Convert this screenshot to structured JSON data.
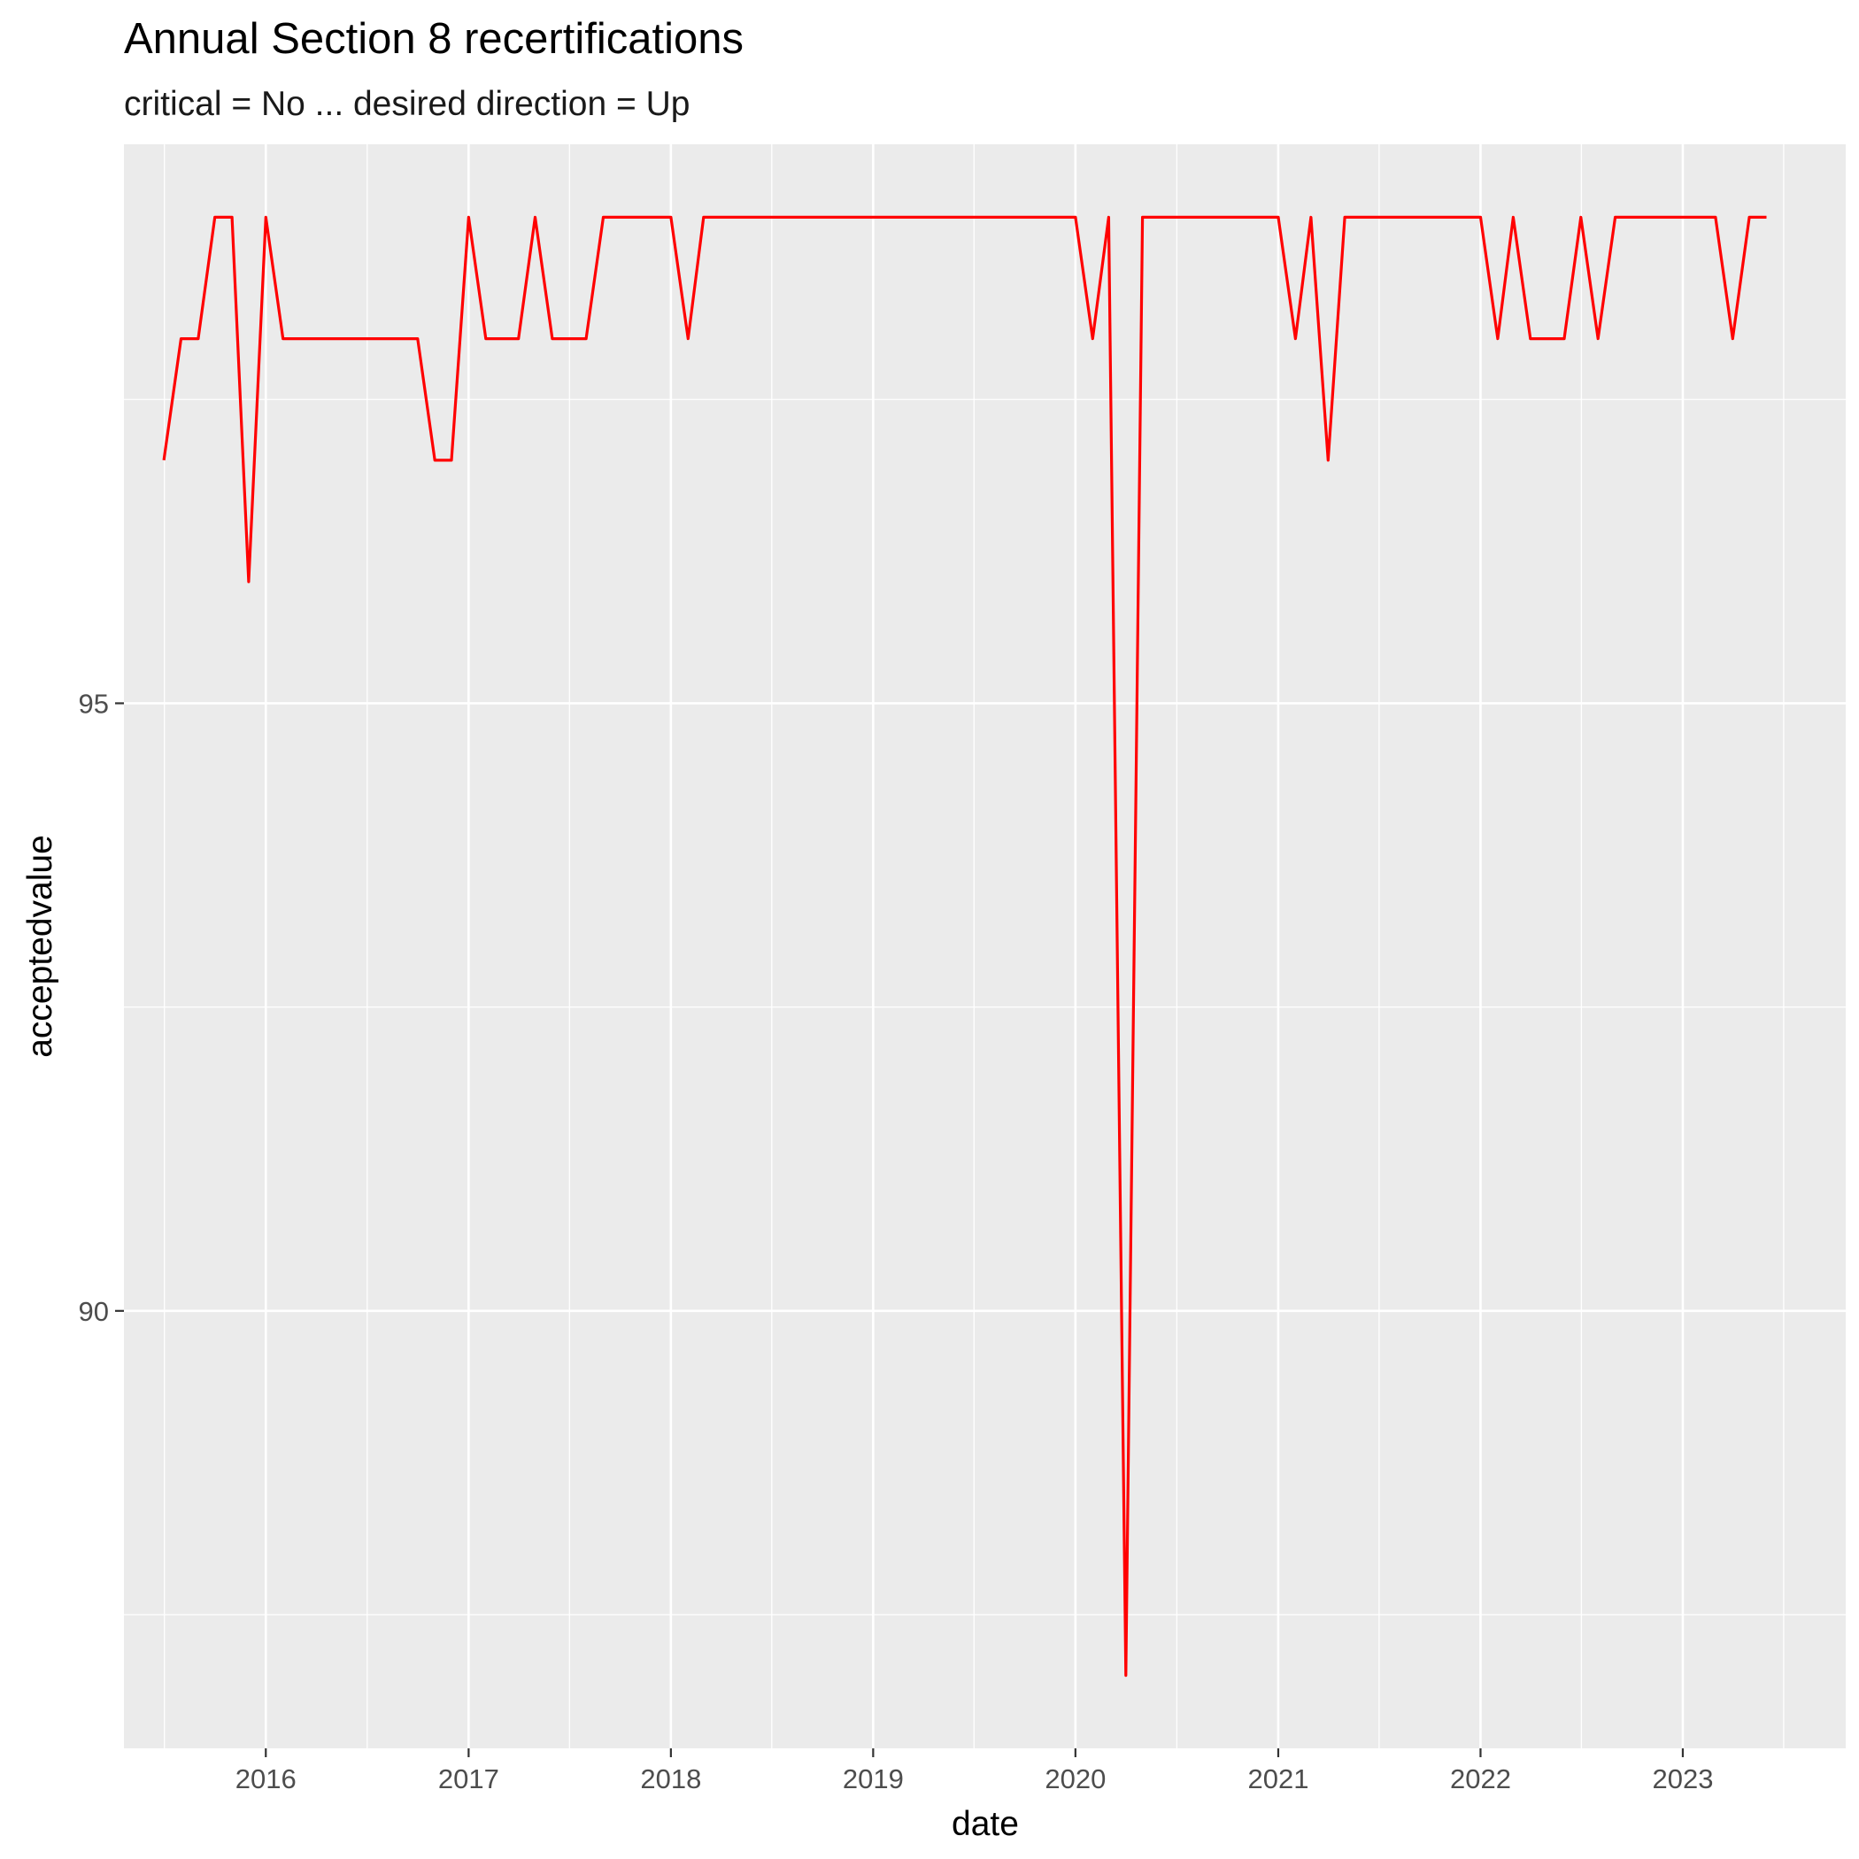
{
  "chart_data": {
    "type": "line",
    "title": "Annual Section 8 recertifications",
    "subtitle": "critical = No ... desired direction = Up",
    "xlabel": "date",
    "ylabel": "acceptedvalue",
    "xlim": [
      "2015-04-20",
      "2023-10-22"
    ],
    "ylim": [
      86.4,
      99.6
    ],
    "x_ticks": [
      "2016",
      "2017",
      "2018",
      "2019",
      "2020",
      "2021",
      "2022",
      "2023"
    ],
    "y_ticks": [
      90,
      95
    ],
    "grid": true,
    "legend": "none",
    "colors": {
      "line": "#ff0000",
      "panel": "#ebebeb",
      "grid": "#ffffff"
    },
    "series": [
      {
        "x": [
          "2015-07-01",
          "2015-08-01",
          "2015-09-01",
          "2015-10-01",
          "2015-11-01",
          "2015-12-01",
          "2016-01-01",
          "2016-02-01",
          "2016-03-01",
          "2016-04-01",
          "2016-05-01",
          "2016-06-01",
          "2016-07-01",
          "2016-08-01",
          "2016-09-01",
          "2016-10-01",
          "2016-11-01",
          "2016-12-01",
          "2017-01-01",
          "2017-02-01",
          "2017-03-01",
          "2017-04-01",
          "2017-05-01",
          "2017-06-01",
          "2017-07-01",
          "2017-08-01",
          "2017-09-01",
          "2017-10-01",
          "2017-11-01",
          "2017-12-01",
          "2018-01-01",
          "2018-02-01",
          "2018-03-01",
          "2018-04-01",
          "2018-05-01",
          "2018-06-01",
          "2018-07-01",
          "2018-08-01",
          "2018-09-01",
          "2018-10-01",
          "2018-11-01",
          "2018-12-01",
          "2019-01-01",
          "2019-02-01",
          "2019-03-01",
          "2019-04-01",
          "2019-05-01",
          "2019-06-01",
          "2019-07-01",
          "2019-08-01",
          "2019-09-01",
          "2019-10-01",
          "2019-11-01",
          "2019-12-01",
          "2020-01-01",
          "2020-02-01",
          "2020-03-01",
          "2020-04-01",
          "2020-05-01",
          "2020-06-01",
          "2020-07-01",
          "2020-08-01",
          "2020-09-01",
          "2020-10-01",
          "2020-11-01",
          "2020-12-01",
          "2021-01-01",
          "2021-02-01",
          "2021-03-01",
          "2021-04-01",
          "2021-05-01",
          "2021-06-01",
          "2021-07-01",
          "2021-08-01",
          "2021-09-01",
          "2021-10-01",
          "2021-11-01",
          "2021-12-01",
          "2022-01-01",
          "2022-02-01",
          "2022-03-01",
          "2022-04-01",
          "2022-05-01",
          "2022-06-01",
          "2022-07-01",
          "2022-08-01",
          "2022-09-01",
          "2022-10-01",
          "2022-11-01",
          "2022-12-01",
          "2023-01-01",
          "2023-02-01",
          "2023-03-01",
          "2023-04-01",
          "2023-05-01",
          "2023-06-01"
        ],
        "values": [
          97,
          98,
          98,
          99,
          99,
          96,
          99,
          98,
          98,
          98,
          98,
          98,
          98,
          98,
          98,
          98,
          97,
          97,
          99,
          98,
          98,
          98,
          99,
          98,
          98,
          98,
          99,
          99,
          99,
          99,
          99,
          98,
          99,
          99,
          99,
          99,
          99,
          99,
          99,
          99,
          99,
          99,
          99,
          99,
          99,
          99,
          99,
          99,
          99,
          99,
          99,
          99,
          99,
          99,
          99,
          98,
          99,
          87,
          99,
          99,
          99,
          99,
          99,
          99,
          99,
          99,
          99,
          98,
          99,
          97,
          99,
          99,
          99,
          99,
          99,
          99,
          99,
          99,
          99,
          98,
          99,
          98,
          98,
          98,
          99,
          98,
          99,
          99,
          99,
          99,
          99,
          99,
          99,
          98,
          99,
          99
        ]
      }
    ]
  }
}
